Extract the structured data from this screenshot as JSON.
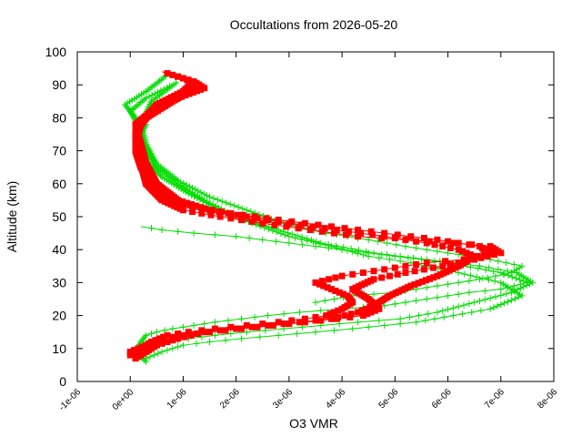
{
  "chart_data": {
    "type": "scatter",
    "title": "Occultations from 2026-05-20",
    "xlabel": "O3 VMR",
    "ylabel": "Altitude (km)",
    "xlim": [
      -1e-06,
      8e-06
    ],
    "ylim": [
      0,
      100
    ],
    "x_ticks": [
      {
        "value": -1e-06,
        "label": "-1e-06"
      },
      {
        "value": 0,
        "label": "0e+00"
      },
      {
        "value": 1e-06,
        "label": "1e-06"
      },
      {
        "value": 2e-06,
        "label": "2e-06"
      },
      {
        "value": 3e-06,
        "label": "3e-06"
      },
      {
        "value": 4e-06,
        "label": "4e-06"
      },
      {
        "value": 5e-06,
        "label": "5e-06"
      },
      {
        "value": 6e-06,
        "label": "6e-06"
      },
      {
        "value": 7e-06,
        "label": "7e-06"
      },
      {
        "value": 8e-06,
        "label": "8e-06"
      }
    ],
    "y_ticks": [
      {
        "value": 0,
        "label": "0"
      },
      {
        "value": 10,
        "label": "10"
      },
      {
        "value": 20,
        "label": "20"
      },
      {
        "value": 30,
        "label": "30"
      },
      {
        "value": 40,
        "label": "40"
      },
      {
        "value": 50,
        "label": "50"
      },
      {
        "value": 60,
        "label": "60"
      },
      {
        "value": 70,
        "label": "70"
      },
      {
        "value": 80,
        "label": "80"
      },
      {
        "value": 90,
        "label": "90"
      },
      {
        "value": 100,
        "label": "100"
      }
    ],
    "grid": false,
    "legend": "none",
    "series": [
      {
        "color": "#00dd00",
        "marker": "plus",
        "profiles": [
          {
            "x": [
              3e-07,
              1e-07,
              2e-07,
              3e-07,
              5e-07,
              8e-07,
              1.2e-06,
              1.6e-06,
              2.1e-06,
              2.6e-06,
              3.2e-06,
              4e-06,
              4.8e-06,
              5.6e-06,
              6.4e-06,
              7e-06,
              7.5e-06,
              7e-06,
              6e-06,
              5e-06,
              4e-06,
              3e-06,
              2e-06,
              1.2e-06,
              6e-07,
              2e-07
            ],
            "y": [
              6,
              9,
              12,
              14,
              15,
              16,
              17,
              18,
              19,
              20,
              21,
              22,
              23,
              25,
              27,
              28,
              30,
              33,
              36,
              38,
              40,
              42,
              44,
              45,
              46,
              47
            ]
          },
          {
            "x": [
              2e-07,
              4e-07,
              7e-07,
              1.1e-06,
              1.6e-06,
              2.2e-06,
              2.9e-06,
              3.6e-06,
              4.3e-06,
              5.1e-06,
              5.8e-06,
              6.5e-06,
              7.2e-06,
              7.6e-06,
              7.3e-06,
              6.6e-06,
              5.6e-06,
              4.6e-06,
              3.6e-06,
              2.8e-06,
              2e-06,
              1.4e-06,
              9e-07,
              5e-07,
              3e-07,
              2e-07,
              3e-07,
              1e-07,
              -1e-07,
              3e-07,
              7e-07
            ],
            "y": [
              8,
              10,
              12,
              13,
              14,
              15,
              16,
              17,
              18,
              19,
              21,
              24,
              27,
              30,
              33,
              35,
              37,
              39,
              42,
              46,
              50,
              55,
              60,
              65,
              70,
              75,
              78,
              80,
              84,
              88,
              93
            ]
          },
          {
            "x": [
              3e-07,
              6e-07,
              1e-06,
              1.5e-06,
              2.1e-06,
              2.8e-06,
              3.5e-06,
              4.2e-06,
              4.8e-06,
              5.4e-06,
              6.1e-06,
              6.8e-06,
              7.4e-06,
              7e-06,
              6.2e-06,
              5.3e-06,
              4.5e-06,
              3.8e-06,
              3e-06,
              2.3e-06,
              1.7e-06,
              1.1e-06,
              6e-07,
              3e-07,
              2e-07,
              2e-07,
              0.0,
              3e-07,
              8e-07
            ],
            "y": [
              7,
              9,
              11,
              12,
              13,
              14,
              15,
              16,
              17,
              18,
              20,
              22,
              26,
              30,
              33,
              36,
              38,
              41,
              44,
              48,
              52,
              57,
              62,
              67,
              72,
              76,
              82,
              86,
              90
            ]
          },
          {
            "x": [
              3.5e-06,
              4.2e-06,
              5e-06,
              5.8e-06,
              6.6e-06,
              7.2e-06,
              7.4e-06,
              6.8e-06,
              6e-06,
              5.2e-06,
              4.5e-06,
              3.7e-06,
              2.9e-06,
              2.2e-06,
              1.5e-06,
              9e-07,
              5e-07,
              3e-07,
              2e-07,
              4e-07,
              9e-07
            ],
            "y": [
              24,
              26,
              27,
              29,
              31,
              33,
              35,
              37,
              39,
              41,
              43,
              45,
              48,
              52,
              56,
              61,
              66,
              72,
              78,
              85,
              91
            ]
          }
        ]
      },
      {
        "color": "#ff0000",
        "marker": "square",
        "profiles": [
          {
            "x": [
              0.0,
              2e-07,
              4e-07,
              7e-07,
              1.1e-06,
              1.6e-06,
              2.2e-06,
              2.8e-06,
              3.3e-06,
              3.7e-06,
              4e-06,
              4.2e-06,
              4.1e-06,
              3.8e-06,
              3.5e-06,
              4e-06,
              4.8e-06,
              5.6e-06,
              6.3e-06,
              6.8e-06,
              6.6e-06,
              5.8e-06,
              4.8e-06,
              3.8e-06,
              2.8e-06,
              1.9e-06,
              1.2e-06,
              7e-07,
              4e-07,
              2e-07,
              1e-07,
              1e-07,
              3e-07,
              7e-07,
              1.1e-06,
              1.3e-06,
              1e-06,
              6e-07
            ],
            "y": [
              8,
              10,
              12,
              14,
              15,
              16,
              17,
              18,
              19,
              20,
              22,
              24,
              26,
              28,
              30,
              32,
              34,
              36,
              37,
              39,
              41,
              43,
              45,
              47,
              49,
              51,
              53,
              56,
              60,
              65,
              70,
              76,
              80,
              84,
              88,
              90,
              92,
              94
            ]
          },
          {
            "x": [
              1e-07,
              3e-07,
              5e-07,
              9e-07,
              1.4e-06,
              2e-06,
              2.6e-06,
              3.2e-06,
              3.8e-06,
              4.3e-06,
              4.6e-06,
              4.9e-06,
              5.3e-06,
              5.8e-06,
              6.2e-06,
              6.5e-06,
              6.2e-06,
              5.6e-06,
              4.8e-06,
              3.9e-06,
              3e-06,
              2.2e-06,
              1.5e-06,
              9e-07,
              5e-07,
              3e-07,
              2e-07,
              1e-07,
              4e-07,
              9e-07,
              1.4e-06,
              1.2e-06,
              8e-07
            ],
            "y": [
              7,
              9,
              11,
              13,
              15,
              16,
              17,
              18,
              19,
              21,
              23,
              26,
              29,
              32,
              35,
              38,
              40,
              42,
              44,
              46,
              48,
              50,
              52,
              55,
              60,
              66,
              72,
              78,
              82,
              86,
              89,
              91,
              93
            ]
          },
          {
            "x": [
              0.0,
              3e-07,
              6e-07,
              1e-06,
              1.5e-06,
              2.1e-06,
              2.7e-06,
              3.3e-06,
              3.9e-06,
              4.4e-06,
              4.7e-06,
              4.5e-06,
              4.2e-06,
              4.6e-06,
              5.2e-06,
              5.9e-06,
              6.5e-06,
              7e-06,
              6.8e-06,
              6.1e-06,
              5.2e-06,
              4.3e-06,
              3.4e-06,
              2.5e-06,
              1.7e-06,
              1e-06,
              6e-07,
              3e-07,
              2e-07,
              1e-07,
              2e-07,
              5e-07,
              1e-06,
              1.2e-06
            ],
            "y": [
              9,
              11,
              13,
              14,
              15,
              16,
              17,
              18,
              19,
              20,
              22,
              25,
              28,
              31,
              33,
              35,
              37,
              39,
              41,
              42,
              43,
              44,
              46,
              48,
              50,
              52,
              55,
              60,
              66,
              72,
              78,
              84,
              88,
              91
            ]
          }
        ]
      }
    ]
  }
}
